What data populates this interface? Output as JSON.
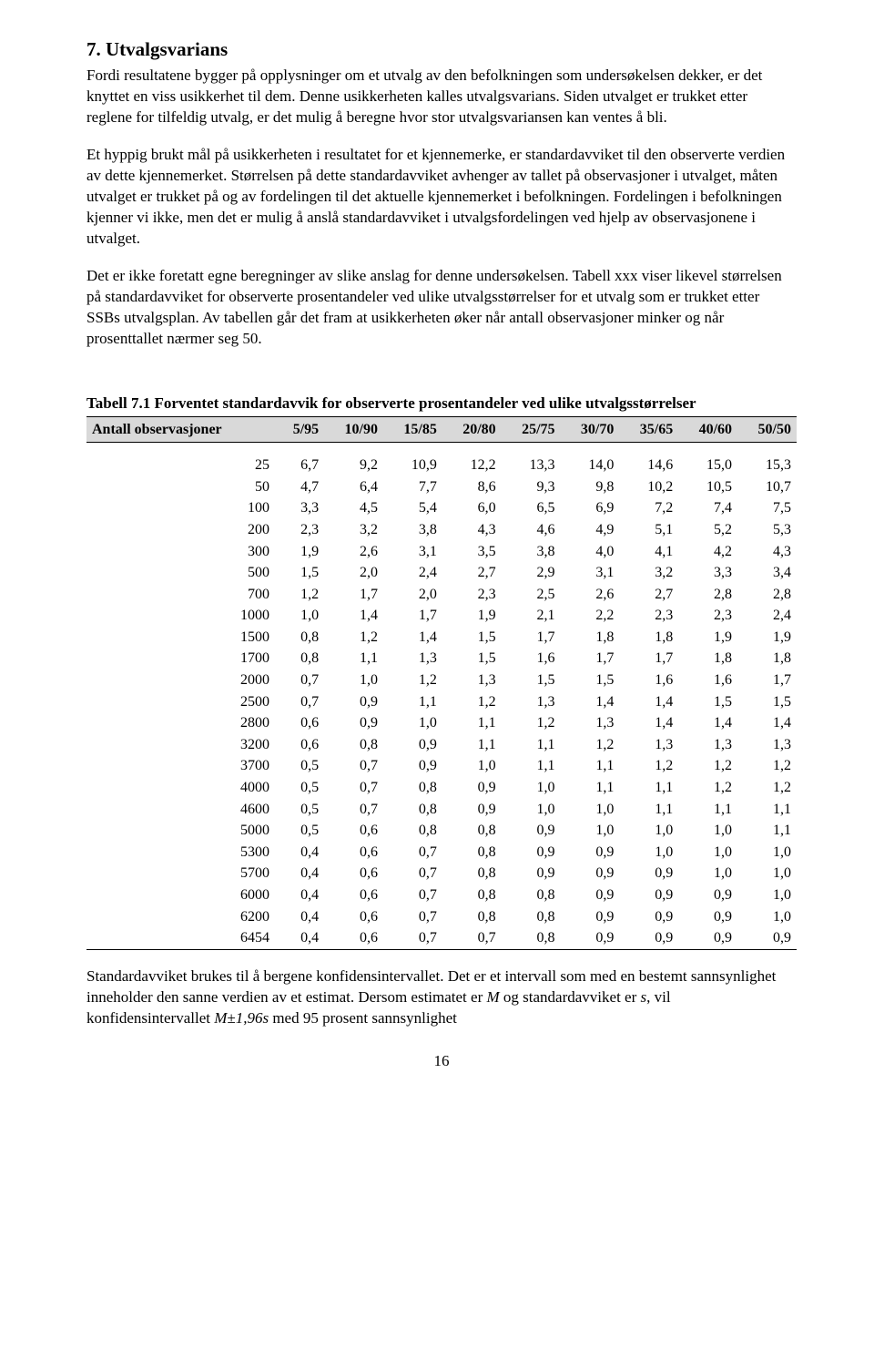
{
  "heading": "7. Utvalgsvarians",
  "para1": "Fordi resultatene bygger på opplysninger om et utvalg av den befolkningen som undersøkelsen dekker, er det knyttet en viss usikkerhet til dem. Denne usikkerheten kalles utvalgsvarians. Siden utvalget er trukket etter reglene for tilfeldig utvalg, er det mulig å beregne hvor stor utvalgsvariansen kan ventes å bli.",
  "para2": "Et hyppig brukt mål på usikkerheten i resultatet for et kjennemerke, er standardavviket til den observerte verdien av dette kjennemerket. Størrelsen på dette standardavviket avhenger av tallet på observasjoner i utvalget, måten utvalget er trukket på og av fordelingen til det aktuelle kjennemerket i befolkningen. Fordelingen i befolkningen kjenner vi ikke, men det er mulig å anslå standardavviket i utvalgsfordelingen ved hjelp av observasjonene i utvalget.",
  "para3": "Det er ikke foretatt egne beregninger av slike anslag for denne undersøkelsen. Tabell xxx viser likevel størrelsen på standardavviket for observerte prosentandeler ved ulike utvalgsstørrelser for et utvalg som er trukket etter SSBs utvalgsplan. Av tabellen går det fram at usikkerheten øker når antall observasjoner minker og når prosenttallet nærmer seg 50.",
  "table": {
    "title": "Tabell 7.1 Forventet standardavvik for observerte prosentandeler ved ulike utvalgsstørrelser",
    "header": [
      "Antall observasjoner",
      "5/95",
      "10/90",
      "15/85",
      "20/80",
      "25/75",
      "30/70",
      "35/65",
      "40/60",
      "50/50"
    ],
    "rows": [
      [
        "25",
        "6,7",
        "9,2",
        "10,9",
        "12,2",
        "13,3",
        "14,0",
        "14,6",
        "15,0",
        "15,3"
      ],
      [
        "50",
        "4,7",
        "6,4",
        "7,7",
        "8,6",
        "9,3",
        "9,8",
        "10,2",
        "10,5",
        "10,7"
      ],
      [
        "100",
        "3,3",
        "4,5",
        "5,4",
        "6,0",
        "6,5",
        "6,9",
        "7,2",
        "7,4",
        "7,5"
      ],
      [
        "200",
        "2,3",
        "3,2",
        "3,8",
        "4,3",
        "4,6",
        "4,9",
        "5,1",
        "5,2",
        "5,3"
      ],
      [
        "300",
        "1,9",
        "2,6",
        "3,1",
        "3,5",
        "3,8",
        "4,0",
        "4,1",
        "4,2",
        "4,3"
      ],
      [
        "500",
        "1,5",
        "2,0",
        "2,4",
        "2,7",
        "2,9",
        "3,1",
        "3,2",
        "3,3",
        "3,4"
      ],
      [
        "700",
        "1,2",
        "1,7",
        "2,0",
        "2,3",
        "2,5",
        "2,6",
        "2,7",
        "2,8",
        "2,8"
      ],
      [
        "1000",
        "1,0",
        "1,4",
        "1,7",
        "1,9",
        "2,1",
        "2,2",
        "2,3",
        "2,3",
        "2,4"
      ],
      [
        "1500",
        "0,8",
        "1,2",
        "1,4",
        "1,5",
        "1,7",
        "1,8",
        "1,8",
        "1,9",
        "1,9"
      ],
      [
        "1700",
        "0,8",
        "1,1",
        "1,3",
        "1,5",
        "1,6",
        "1,7",
        "1,7",
        "1,8",
        "1,8"
      ],
      [
        "2000",
        "0,7",
        "1,0",
        "1,2",
        "1,3",
        "1,5",
        "1,5",
        "1,6",
        "1,6",
        "1,7"
      ],
      [
        "2500",
        "0,7",
        "0,9",
        "1,1",
        "1,2",
        "1,3",
        "1,4",
        "1,4",
        "1,5",
        "1,5"
      ],
      [
        "2800",
        "0,6",
        "0,9",
        "1,0",
        "1,1",
        "1,2",
        "1,3",
        "1,4",
        "1,4",
        "1,4"
      ],
      [
        "3200",
        "0,6",
        "0,8",
        "0,9",
        "1,1",
        "1,1",
        "1,2",
        "1,3",
        "1,3",
        "1,3"
      ],
      [
        "3700",
        "0,5",
        "0,7",
        "0,9",
        "1,0",
        "1,1",
        "1,1",
        "1,2",
        "1,2",
        "1,2"
      ],
      [
        "4000",
        "0,5",
        "0,7",
        "0,8",
        "0,9",
        "1,0",
        "1,1",
        "1,1",
        "1,2",
        "1,2"
      ],
      [
        "4600",
        "0,5",
        "0,7",
        "0,8",
        "0,9",
        "1,0",
        "1,0",
        "1,1",
        "1,1",
        "1,1"
      ],
      [
        "5000",
        "0,5",
        "0,6",
        "0,8",
        "0,8",
        "0,9",
        "1,0",
        "1,0",
        "1,0",
        "1,1"
      ],
      [
        "5300",
        "0,4",
        "0,6",
        "0,7",
        "0,8",
        "0,9",
        "0,9",
        "1,0",
        "1,0",
        "1,0"
      ],
      [
        "5700",
        "0,4",
        "0,6",
        "0,7",
        "0,8",
        "0,9",
        "0,9",
        "0,9",
        "1,0",
        "1,0"
      ],
      [
        "6000",
        "0,4",
        "0,6",
        "0,7",
        "0,8",
        "0,8",
        "0,9",
        "0,9",
        "0,9",
        "1,0"
      ],
      [
        "6200",
        "0,4",
        "0,6",
        "0,7",
        "0,8",
        "0,8",
        "0,9",
        "0,9",
        "0,9",
        "1,0"
      ],
      [
        "6454",
        "0,4",
        "0,6",
        "0,7",
        "0,7",
        "0,8",
        "0,9",
        "0,9",
        "0,9",
        "0,9"
      ]
    ]
  },
  "para4_a": "Standardavviket brukes til å bergene konfidensintervallet. Det er et intervall som med en bestemt sannsynlighet inneholder den sanne verdien av et estimat. Dersom estimatet er ",
  "para4_M": "M",
  "para4_b": " og standardavviket er ",
  "para4_s": "s",
  "para4_c": ", vil konfidensintervallet ",
  "para4_formula": "M±1,96s",
  "para4_d": " med 95 prosent sannsynlighet",
  "page_number": "16",
  "colors": {
    "header_bg": "#d9d9d9",
    "text": "#000000",
    "bg": "#ffffff"
  }
}
